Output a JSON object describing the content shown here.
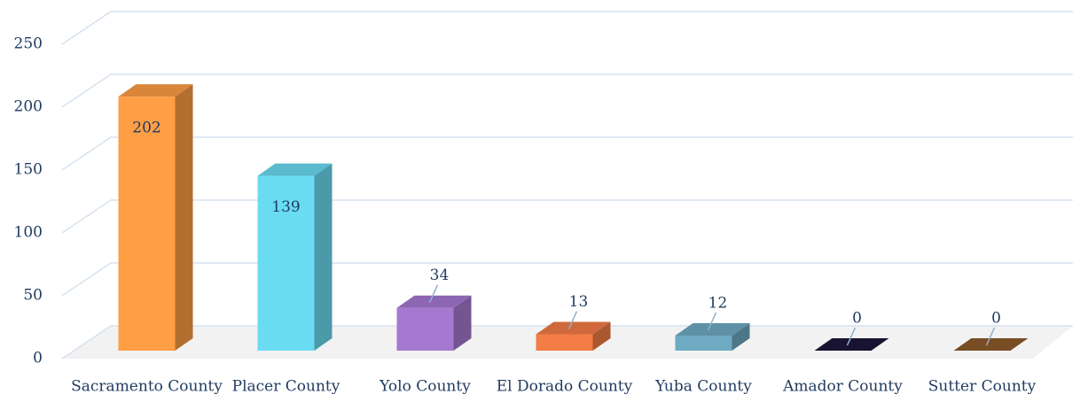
{
  "chart_data": {
    "type": "bar3d",
    "categories": [
      "Sacramento County",
      "Placer County",
      "Yolo County",
      "El Dorado County",
      "Yuba County",
      "Amador County",
      "Sutter County"
    ],
    "values": [
      202,
      139,
      34,
      13,
      12,
      0,
      0
    ],
    "colors": [
      "#ff9e45",
      "#6adcf2",
      "#a679d0",
      "#f47c45",
      "#6eaac2",
      "#1b1638",
      "#8e5a2a"
    ],
    "ylim": [
      0,
      250
    ],
    "yticks": [
      0,
      50,
      100,
      150,
      200,
      250
    ],
    "grid": true
  }
}
